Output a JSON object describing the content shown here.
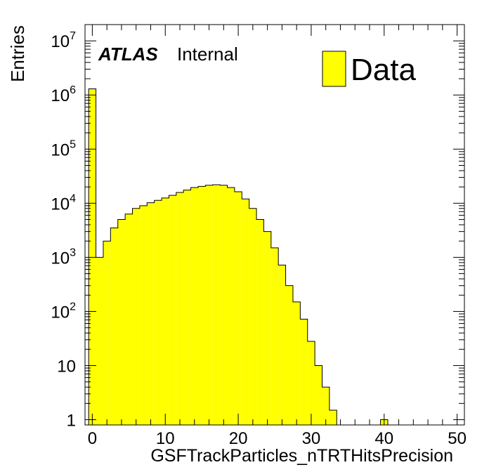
{
  "chart_data": {
    "type": "bar",
    "style": "histogram",
    "xlabel": "GSFTrackParticles_nTRTHitsPrecision",
    "ylabel": "Entries",
    "yscale": "log",
    "xlim": [
      -1,
      51
    ],
    "ylim": [
      0.8,
      20000000
    ],
    "x_ticks": [
      0,
      10,
      20,
      30,
      40,
      50
    ],
    "y_ticks": [
      {
        "value": 1,
        "base": "1",
        "exp": ""
      },
      {
        "value": 10,
        "base": "10",
        "exp": ""
      },
      {
        "value": 100,
        "base": "10",
        "exp": "2"
      },
      {
        "value": 1000,
        "base": "10",
        "exp": "3"
      },
      {
        "value": 10000,
        "base": "10",
        "exp": "4"
      },
      {
        "value": 100000,
        "base": "10",
        "exp": "5"
      },
      {
        "value": 1000000,
        "base": "10",
        "exp": "6"
      },
      {
        "value": 10000000,
        "base": "10",
        "exp": "7"
      }
    ],
    "bin_edges_start": -0.5,
    "bin_width": 1,
    "fill_color": "#ffff00",
    "line_color": "#000000",
    "legend_position": "top-right",
    "series": [
      {
        "name": "Data",
        "values": [
          1300000,
          1000,
          2000,
          3500,
          5000,
          6300,
          8000,
          9000,
          10200,
          11300,
          12500,
          14000,
          15800,
          17500,
          19500,
          20500,
          21500,
          22000,
          21500,
          19500,
          16300,
          12000,
          8000,
          5000,
          3000,
          1500,
          720,
          300,
          150,
          72,
          28,
          10,
          4,
          1.5,
          0,
          0,
          0,
          0,
          0,
          0,
          1,
          0,
          0,
          0,
          0,
          0,
          0,
          0,
          0,
          0,
          0
        ]
      }
    ]
  },
  "annotation": {
    "atlas": "ATLAS",
    "internal": "Internal"
  }
}
